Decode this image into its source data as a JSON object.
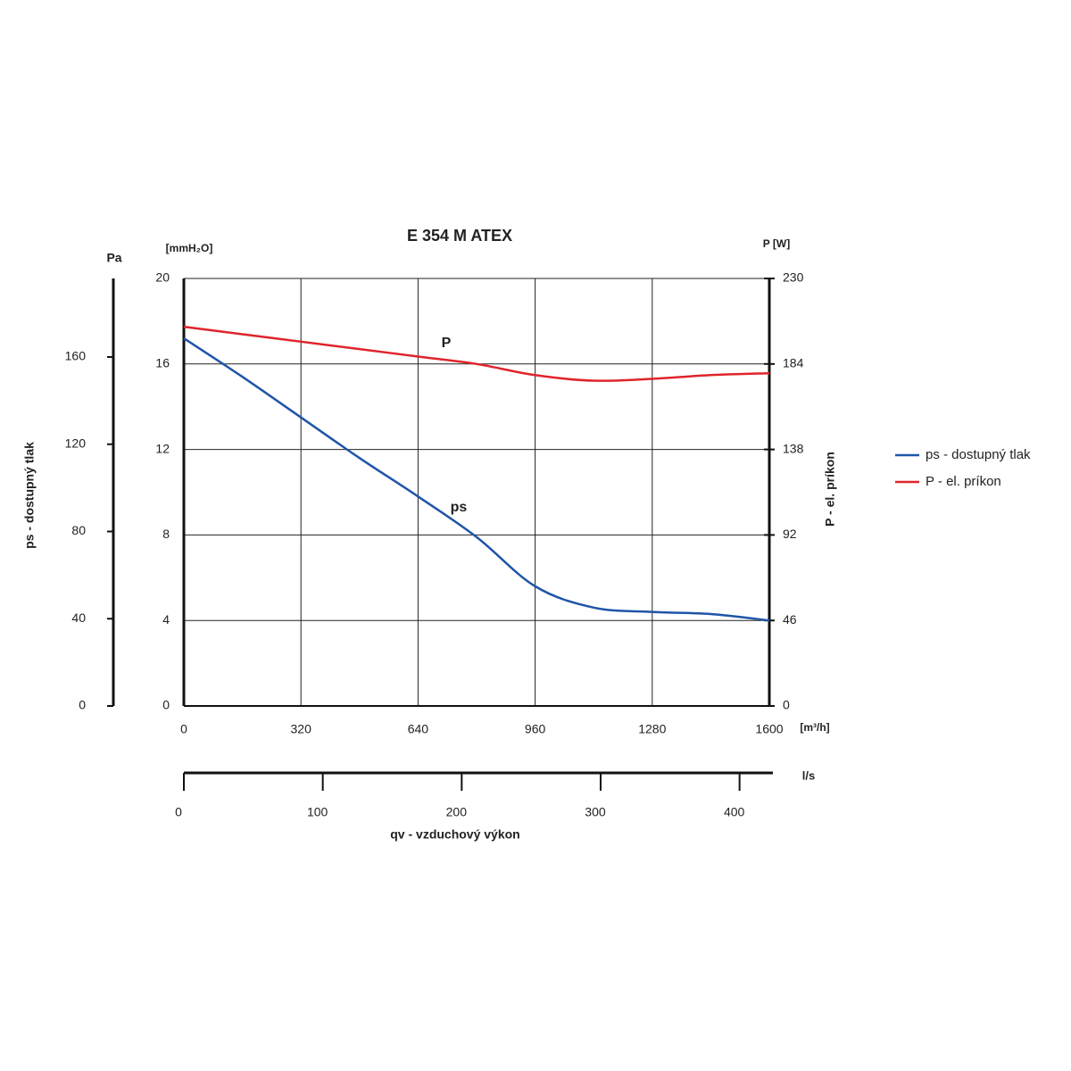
{
  "chart_data": {
    "type": "line",
    "title": "E 354 M ATEX",
    "ylabel_unit": "[mmH₂O]",
    "y2label_unit": "P [W]",
    "xlabel_unit": "[m³/h]",
    "ylabel": "ps - dostupný tlak",
    "y2label": "P - el. príkon",
    "x": [
      0,
      160,
      320,
      480,
      640,
      800,
      960,
      1120,
      1280,
      1440,
      1600
    ],
    "xlim": [
      0,
      1600
    ],
    "xticks": [
      0,
      320,
      640,
      960,
      1280,
      1600
    ],
    "ylim": [
      0,
      20
    ],
    "yticks": [
      0,
      4,
      8,
      12,
      16,
      20
    ],
    "y2lim": [
      0,
      230
    ],
    "y2ticks": [
      0,
      46,
      92,
      138,
      184,
      230
    ],
    "grid": true,
    "legend": "right",
    "series": [
      {
        "name": "ps - dostupný tlak",
        "color": "#1f55a8",
        "values": [
          17.2,
          15.4,
          13.5,
          11.6,
          9.8,
          7.9,
          5.6,
          4.6,
          4.4,
          4.3,
          4.0
        ]
      },
      {
        "name": "P - el. príkon",
        "color": "#e0242b",
        "axis": "y2",
        "values": [
          204,
          200,
          196,
          192,
          188,
          184,
          178,
          175,
          176,
          178,
          179
        ]
      }
    ],
    "annotations": [
      "ps",
      "P"
    ],
    "pa_axis": {
      "label": "Pa",
      "lim": [
        0,
        196
      ],
      "ticks": [
        0,
        40,
        80,
        120,
        160
      ]
    },
    "ls_axis": {
      "label": "l/s",
      "lim": [
        0,
        424
      ],
      "ticks": [
        0,
        100,
        200,
        300,
        400
      ],
      "title": "qv - vzduchový výkon"
    }
  }
}
